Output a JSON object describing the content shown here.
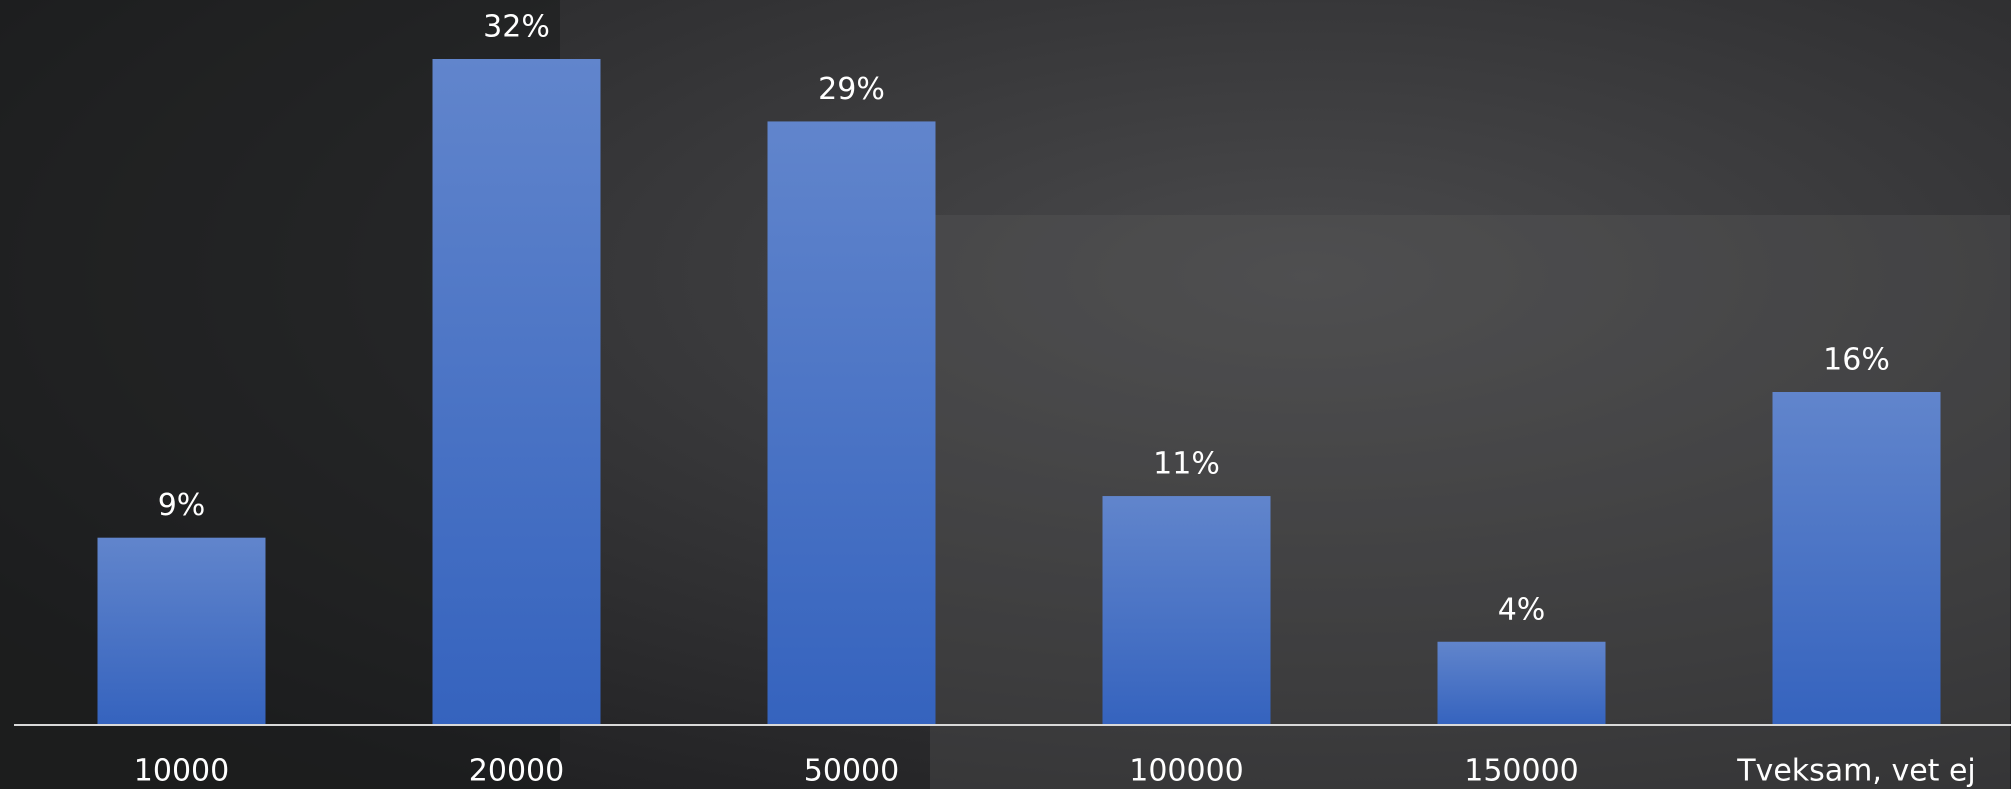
{
  "chart_data": {
    "type": "bar",
    "categories": [
      "10000",
      "20000",
      "50000",
      "100000",
      "150000",
      "Tveksam, vet ej"
    ],
    "values": [
      9,
      32,
      29,
      11,
      4,
      16
    ],
    "value_labels": [
      "9%",
      "32%",
      "29%",
      "11%",
      "4%",
      "16%"
    ],
    "color": "#3563be"
  }
}
